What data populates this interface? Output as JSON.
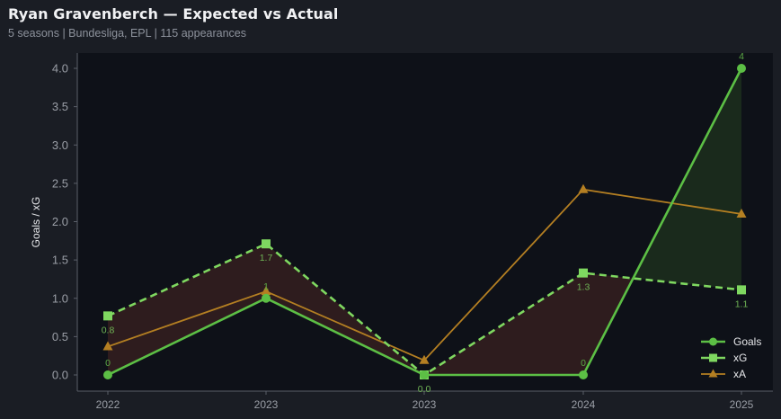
{
  "header": {
    "title": "Ryan Gravenberch — Expected vs Actual",
    "subtitle": "5 seasons | Bundesliga, EPL | 115 appearances"
  },
  "colors": {
    "background": "#1a1d24",
    "plot_background": "#0e1118",
    "goals": "#5cbf45",
    "xg": "#7fd860",
    "xa": "#b47f22",
    "underperform_fill": "#2e1c1e",
    "overperform_fill": "#1a2a1c",
    "axis": "#5a5f69"
  },
  "chart_data": {
    "type": "line",
    "title": "Ryan Gravenberch — Expected vs Actual",
    "subtitle": "5 seasons | Bundesliga, EPL | 115 appearances",
    "xlabel": "",
    "ylabel": "Goals / xG",
    "categories": [
      "2022",
      "2023",
      "2023",
      "2024",
      "2025"
    ],
    "ylim": [
      -0.2,
      4.2
    ],
    "yticks": [
      "0.0",
      "0.5",
      "1.0",
      "1.5",
      "2.0",
      "2.5",
      "3.0",
      "3.5",
      "4.0"
    ],
    "grid": false,
    "legend_position": "lower right",
    "series": [
      {
        "name": "Goals",
        "marker": "circle",
        "line": "solid",
        "values": [
          0,
          1,
          0,
          0,
          4
        ],
        "labels": [
          "0",
          "1",
          "",
          "0",
          "4"
        ]
      },
      {
        "name": "xG",
        "marker": "square",
        "line": "dashed",
        "values": [
          0.77,
          1.71,
          0.0,
          1.33,
          1.11
        ],
        "labels": [
          "0.8",
          "1.7",
          "0.0",
          "1.3",
          "1.1"
        ]
      },
      {
        "name": "xA",
        "marker": "triangle",
        "line": "solid",
        "values": [
          0.37,
          1.09,
          0.19,
          2.42,
          2.1
        ],
        "labels": []
      }
    ],
    "annotations": [
      "Fill between Goals and xG: red where Goals < xG, green where Goals > xG"
    ]
  },
  "legend": {
    "items": [
      {
        "label": "Goals"
      },
      {
        "label": "xG"
      },
      {
        "label": "xA"
      }
    ]
  }
}
